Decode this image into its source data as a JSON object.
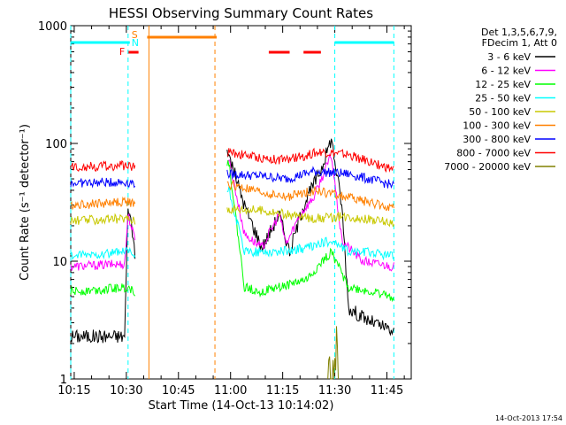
{
  "chart_data": {
    "type": "line",
    "title": "HESSI Observing Summary Count Rates",
    "xlabel": "Start Time (14-Oct-13 10:14:02)",
    "ylabel": "Count Rate (s⁻¹ detector⁻¹)",
    "y_scale": "log",
    "ylim": [
      1,
      1000
    ],
    "xlim_minutes": [
      0,
      98
    ],
    "x_ticks": [
      "10:15",
      "10:30",
      "10:45",
      "11:00",
      "11:15",
      "11:30",
      "11:45"
    ],
    "x_tick_minutes": [
      1,
      16,
      31,
      46,
      61,
      76,
      91
    ],
    "y_ticks": [
      "1",
      "10",
      "100",
      "1000"
    ],
    "y_tick_values": [
      1,
      10,
      100,
      1000
    ],
    "legend_header": [
      "Det 1,3,5,6,7,9,",
      "FDecim 1, Att 0"
    ],
    "legend_position": "right",
    "footer_timestamp": "14-Oct-2013 17:54",
    "flags": {
      "saa_label": "S",
      "night_label": "N",
      "flare_label": "F",
      "night_color": "#00ffff",
      "saa_color": "#ff8000",
      "flare_color": "#ff0000",
      "night_segments": [
        [
          0,
          17
        ],
        [
          76,
          93
        ]
      ],
      "saa_segment": [
        22,
        42
      ],
      "flare_segments": [
        [
          16.5,
          19.5
        ],
        [
          57,
          63
        ],
        [
          67,
          72
        ]
      ],
      "cyan_vlines": [
        0,
        16.5,
        76,
        93
      ],
      "orange_vlines": [
        22.5,
        41.5
      ]
    },
    "gaps": [
      [
        18.5,
        45
      ],
      [
        93.5,
        98
      ]
    ],
    "series": [
      {
        "name": "3 - 6 keV",
        "color": "#000000",
        "points": [
          [
            0,
            2.3
          ],
          [
            15.5,
            2.3
          ],
          [
            16.5,
            30
          ],
          [
            17.5,
            20
          ],
          [
            18.5,
            12
          ],
          [
            45.5,
            80
          ],
          [
            50,
            30
          ],
          [
            55,
            13
          ],
          [
            60,
            25
          ],
          [
            63,
            12
          ],
          [
            67,
            30
          ],
          [
            72,
            60
          ],
          [
            75,
            110
          ],
          [
            78,
            30
          ],
          [
            80,
            4
          ],
          [
            85,
            3.2
          ],
          [
            93,
            2.5
          ]
        ]
      },
      {
        "name": "6 - 12 keV",
        "color": "#ff00ff",
        "points": [
          [
            0,
            9
          ],
          [
            15.5,
            9.5
          ],
          [
            16.5,
            25
          ],
          [
            18.5,
            15
          ],
          [
            45.5,
            75
          ],
          [
            50,
            17
          ],
          [
            55,
            13
          ],
          [
            60,
            25
          ],
          [
            62,
            14
          ],
          [
            66,
            25
          ],
          [
            70,
            35
          ],
          [
            75,
            80
          ],
          [
            78,
            15
          ],
          [
            84,
            10
          ],
          [
            93,
            9
          ]
        ]
      },
      {
        "name": "12 - 25 keV",
        "color": "#00ff00",
        "points": [
          [
            0,
            5.5
          ],
          [
            16.5,
            6
          ],
          [
            18.5,
            5.5
          ],
          [
            45.5,
            70
          ],
          [
            50,
            6
          ],
          [
            55,
            5.5
          ],
          [
            60,
            6
          ],
          [
            68,
            7
          ],
          [
            75,
            12
          ],
          [
            80,
            6
          ],
          [
            86,
            5.5
          ],
          [
            93,
            5
          ]
        ]
      },
      {
        "name": "25 - 50 keV",
        "color": "#00ffff",
        "points": [
          [
            0,
            11
          ],
          [
            16.5,
            12
          ],
          [
            18.5,
            11
          ],
          [
            45.5,
            40
          ],
          [
            50,
            12
          ],
          [
            55,
            12
          ],
          [
            60,
            12
          ],
          [
            68,
            13
          ],
          [
            75,
            15
          ],
          [
            80,
            12
          ],
          [
            86,
            12
          ],
          [
            93,
            11
          ]
        ]
      },
      {
        "name": "50 - 100 keV",
        "color": "#c8c800",
        "points": [
          [
            0,
            22
          ],
          [
            16.5,
            23
          ],
          [
            18.5,
            22
          ],
          [
            45.5,
            28
          ],
          [
            55,
            27
          ],
          [
            62,
            25
          ],
          [
            70,
            23
          ],
          [
            80,
            24
          ],
          [
            93,
            21
          ]
        ]
      },
      {
        "name": "100 - 300 keV",
        "color": "#ff8000",
        "points": [
          [
            0,
            30
          ],
          [
            16.5,
            32
          ],
          [
            18.5,
            30
          ],
          [
            45.5,
            45
          ],
          [
            55,
            38
          ],
          [
            62,
            35
          ],
          [
            70,
            40
          ],
          [
            80,
            35
          ],
          [
            93,
            28
          ]
        ]
      },
      {
        "name": "300 - 800 keV",
        "color": "#0000ff",
        "points": [
          [
            0,
            46
          ],
          [
            16.5,
            47
          ],
          [
            18.5,
            46
          ],
          [
            45.5,
            55
          ],
          [
            55,
            53
          ],
          [
            62,
            50
          ],
          [
            70,
            58
          ],
          [
            80,
            55
          ],
          [
            93,
            44
          ]
        ]
      },
      {
        "name": "800 - 7000 keV",
        "color": "#ff0000",
        "points": [
          [
            0,
            63
          ],
          [
            16.5,
            65
          ],
          [
            18.5,
            63
          ],
          [
            45.5,
            85
          ],
          [
            55,
            75
          ],
          [
            62,
            72
          ],
          [
            72,
            85
          ],
          [
            80,
            80
          ],
          [
            93,
            60
          ]
        ]
      },
      {
        "name": "7000 - 20000 keV",
        "color": "#808000",
        "points": [
          [
            74,
            1
          ],
          [
            74.5,
            1.8
          ],
          [
            75,
            1
          ],
          [
            75.5,
            1.6
          ],
          [
            76,
            1
          ],
          [
            76.5,
            1.8
          ],
          [
            77,
            1
          ]
        ]
      }
    ]
  }
}
